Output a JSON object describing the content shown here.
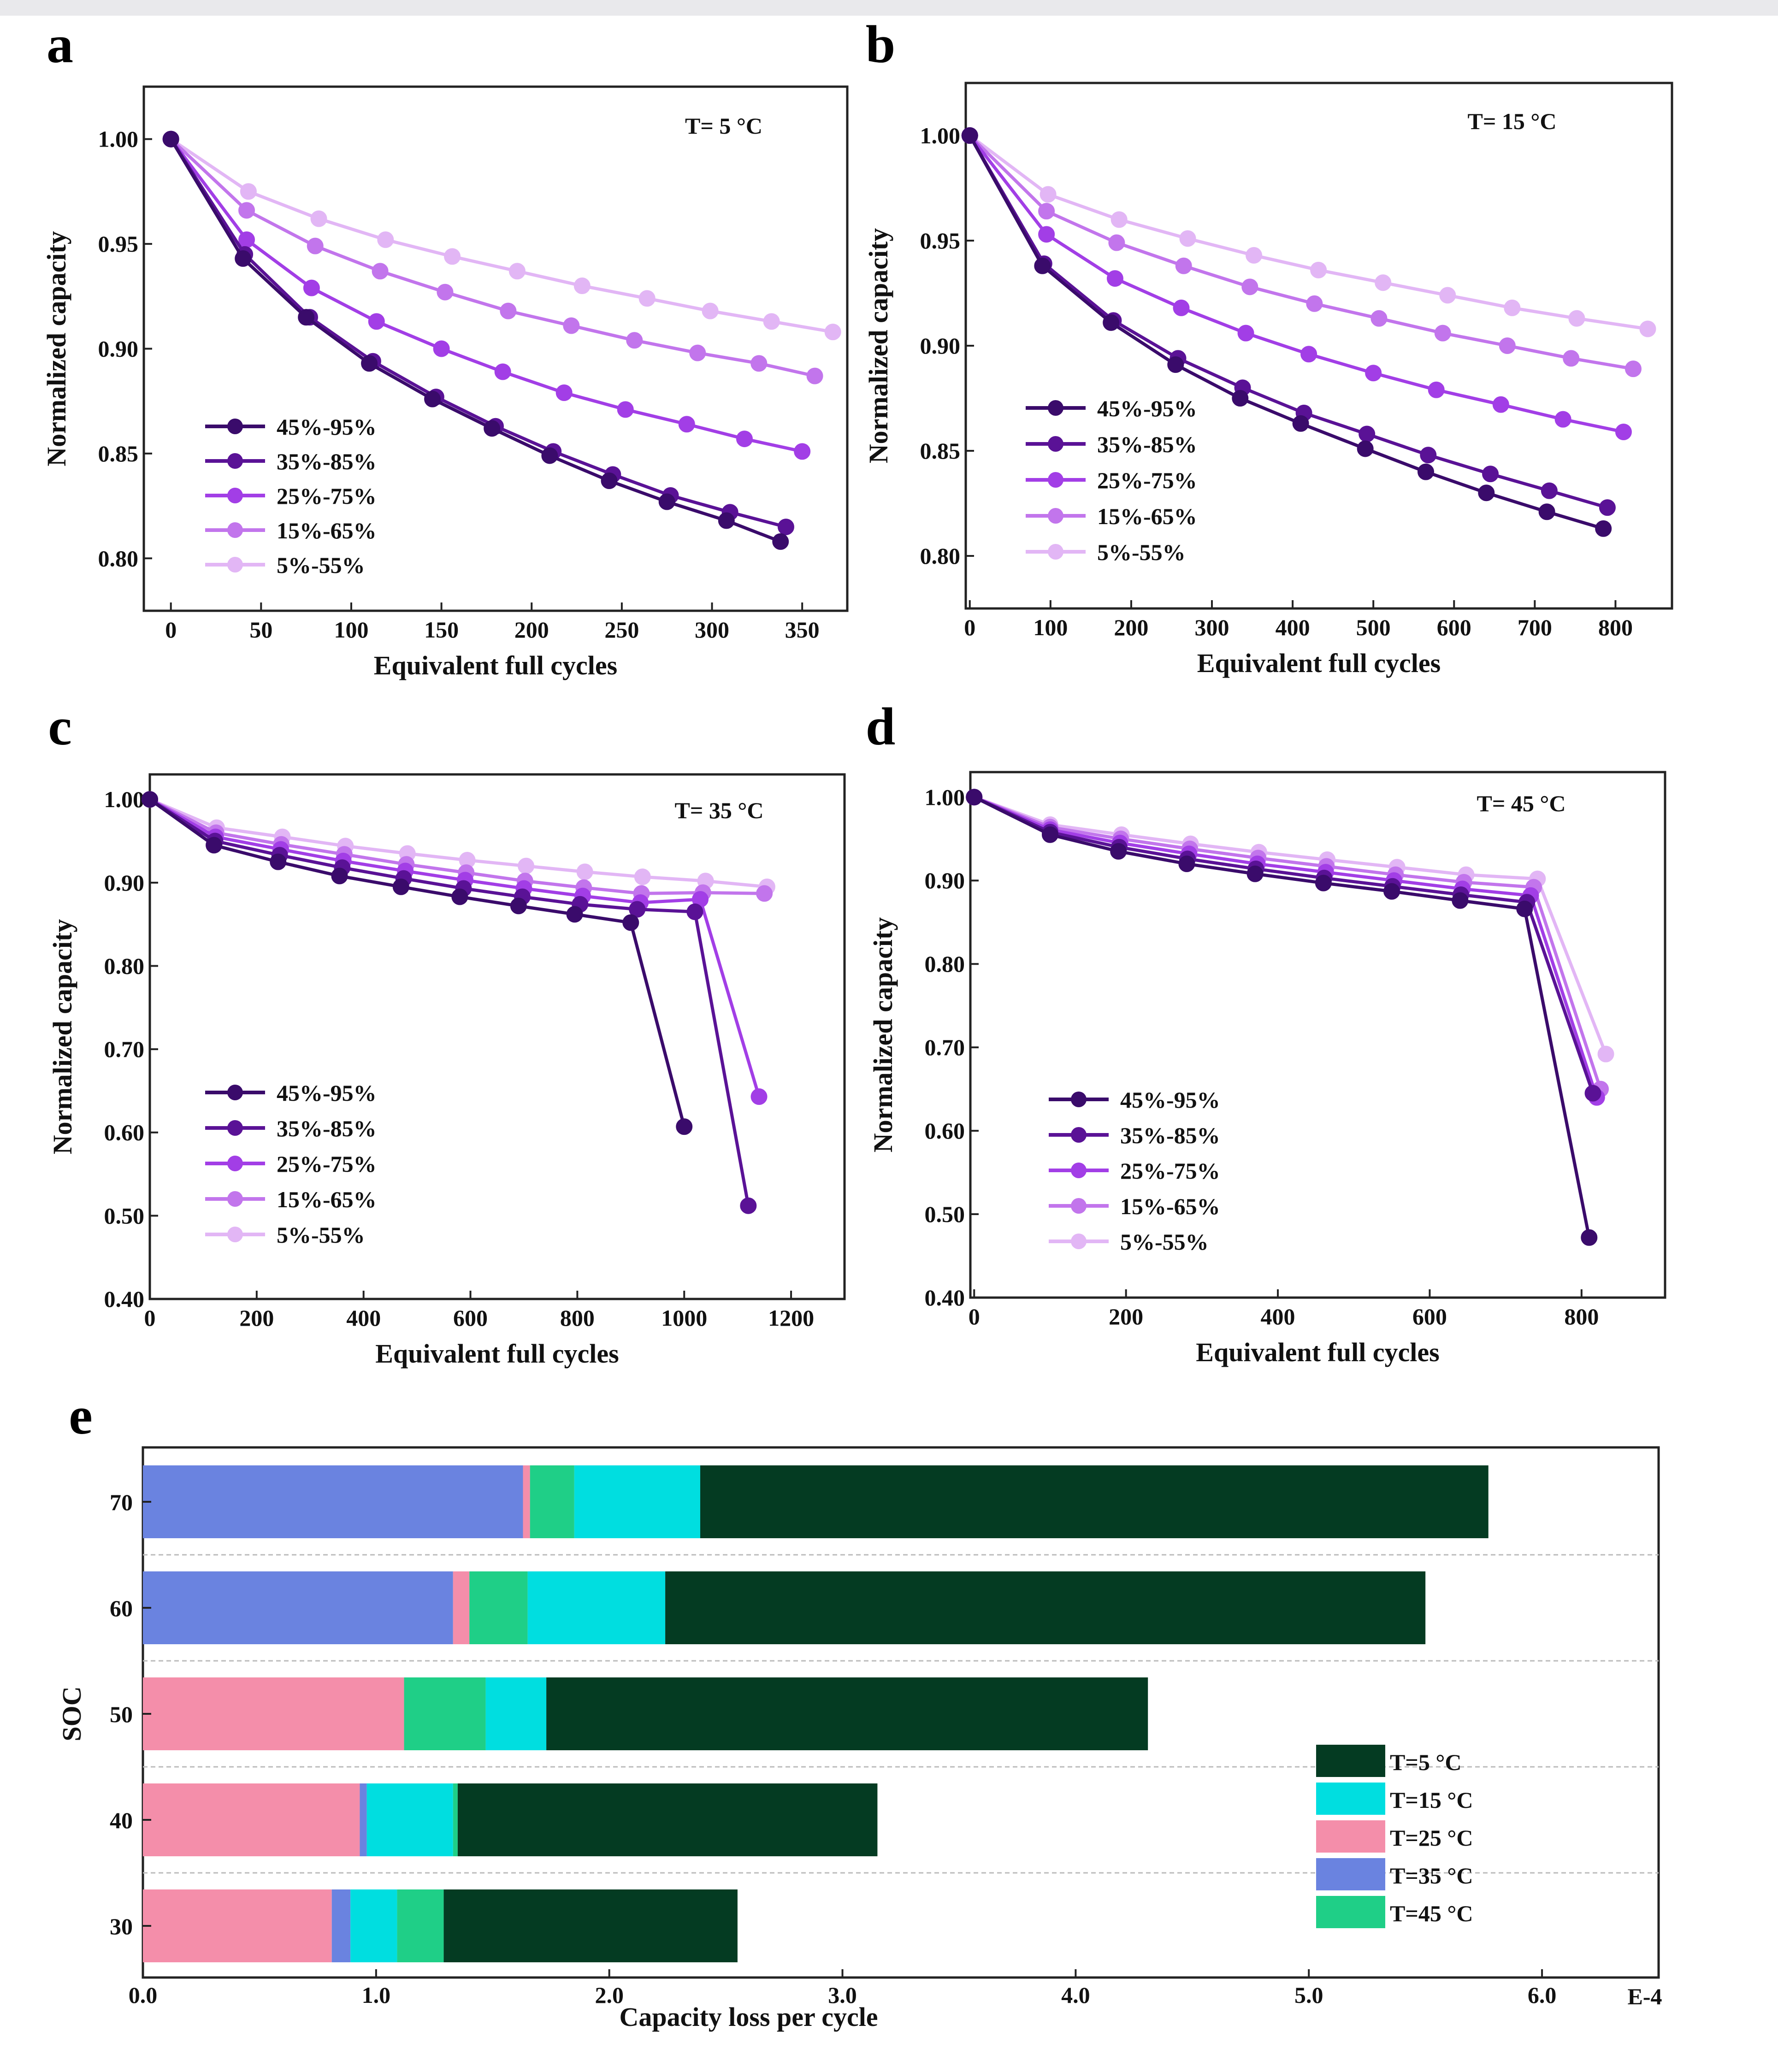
{
  "chart_data": [
    {
      "panel": "a",
      "type": "line",
      "temperature_label": "T= 5 °C",
      "xlabel": "Equivalent full cycles",
      "ylabel": "Normalized capacity",
      "xlim": [
        -15,
        375
      ],
      "ylim": [
        0.775,
        1.025
      ],
      "xticks": [
        0,
        50,
        100,
        150,
        200,
        250,
        300,
        350
      ],
      "yticks": [
        0.8,
        0.85,
        0.9,
        0.95,
        1.0
      ],
      "ytick_labels": [
        "0.80",
        "0.85",
        "0.90",
        "0.95",
        "1.00"
      ],
      "series": [
        {
          "name": "45%-95%",
          "color": "#3a0b6b",
          "x": [
            0,
            40,
            75,
            110,
            145,
            178,
            210,
            243,
            275,
            308,
            338
          ],
          "y": [
            1.0,
            0.943,
            0.915,
            0.893,
            0.876,
            0.862,
            0.849,
            0.837,
            0.827,
            0.818,
            0.808
          ]
        },
        {
          "name": "35%-85%",
          "color": "#5a1296",
          "x": [
            0,
            41,
            77,
            112,
            147,
            180,
            212,
            245,
            277,
            310,
            341
          ],
          "y": [
            1.0,
            0.945,
            0.915,
            0.894,
            0.877,
            0.863,
            0.851,
            0.84,
            0.83,
            0.822,
            0.815
          ]
        },
        {
          "name": "25%-75%",
          "color": "#a23ee6",
          "x": [
            0,
            42,
            78,
            114,
            150,
            184,
            218,
            252,
            286,
            318,
            350
          ],
          "y": [
            1.0,
            0.952,
            0.929,
            0.913,
            0.9,
            0.889,
            0.879,
            0.871,
            0.864,
            0.857,
            0.851
          ]
        },
        {
          "name": "15%-65%",
          "color": "#c275ec",
          "x": [
            0,
            42,
            80,
            116,
            152,
            187,
            222,
            257,
            292,
            326,
            357
          ],
          "y": [
            1.0,
            0.966,
            0.949,
            0.937,
            0.927,
            0.918,
            0.911,
            0.904,
            0.898,
            0.893,
            0.887
          ]
        },
        {
          "name": "5%-55%",
          "color": "#e2b6f5",
          "x": [
            0,
            43,
            82,
            119,
            156,
            192,
            228,
            264,
            299,
            333,
            367
          ],
          "y": [
            1.0,
            0.975,
            0.962,
            0.952,
            0.944,
            0.937,
            0.93,
            0.924,
            0.918,
            0.913,
            0.908
          ]
        }
      ]
    },
    {
      "panel": "b",
      "type": "line",
      "temperature_label": "T= 15 °C",
      "xlabel": "Equivalent full cycles",
      "ylabel": "Normalized capacity",
      "xlim": [
        -5,
        870
      ],
      "ylim": [
        0.775,
        1.025
      ],
      "xticks": [
        0,
        100,
        200,
        300,
        400,
        500,
        600,
        700,
        800
      ],
      "yticks": [
        0.8,
        0.85,
        0.9,
        0.95,
        1.0
      ],
      "ytick_labels": [
        "0.80",
        "0.85",
        "0.90",
        "0.95",
        "1.00"
      ],
      "series": [
        {
          "name": "45%-95%",
          "color": "#3a0b6b",
          "x": [
            0,
            90,
            175,
            255,
            335,
            410,
            490,
            565,
            640,
            715,
            785
          ],
          "y": [
            1.0,
            0.938,
            0.911,
            0.891,
            0.875,
            0.863,
            0.851,
            0.84,
            0.83,
            0.821,
            0.813
          ]
        },
        {
          "name": "35%-85%",
          "color": "#5a1296",
          "x": [
            0,
            92,
            178,
            258,
            338,
            414,
            492,
            568,
            645,
            718,
            790
          ],
          "y": [
            1.0,
            0.939,
            0.912,
            0.894,
            0.88,
            0.868,
            0.858,
            0.848,
            0.839,
            0.831,
            0.823
          ]
        },
        {
          "name": "25%-75%",
          "color": "#a23ee6",
          "x": [
            0,
            95,
            180,
            262,
            342,
            420,
            500,
            578,
            658,
            735,
            810
          ],
          "y": [
            1.0,
            0.953,
            0.932,
            0.918,
            0.906,
            0.896,
            0.887,
            0.879,
            0.872,
            0.865,
            0.859
          ]
        },
        {
          "name": "15%-65%",
          "color": "#c275ec",
          "x": [
            0,
            95,
            182,
            265,
            347,
            427,
            507,
            586,
            666,
            745,
            822
          ],
          "y": [
            1.0,
            0.964,
            0.949,
            0.938,
            0.928,
            0.92,
            0.913,
            0.906,
            0.9,
            0.894,
            0.889
          ]
        },
        {
          "name": "5%-55%",
          "color": "#e2b6f5",
          "x": [
            0,
            97,
            185,
            270,
            352,
            432,
            512,
            592,
            672,
            752,
            840
          ],
          "y": [
            1.0,
            0.972,
            0.96,
            0.951,
            0.943,
            0.936,
            0.93,
            0.924,
            0.918,
            0.913,
            0.908
          ]
        }
      ]
    },
    {
      "panel": "c",
      "type": "line",
      "temperature_label": "T= 35 °C",
      "xlabel": "Equivalent full cycles",
      "ylabel": "Normalized capacity",
      "xlim": [
        0,
        1300
      ],
      "ylim": [
        0.4,
        1.03
      ],
      "xticks": [
        0,
        200,
        400,
        600,
        800,
        1000,
        1200
      ],
      "yticks": [
        0.4,
        0.5,
        0.6,
        0.7,
        0.8,
        0.9,
        1.0
      ],
      "ytick_labels": [
        "0.40",
        "0.50",
        "0.60",
        "0.70",
        "0.80",
        "0.90",
        "1.00"
      ],
      "series": [
        {
          "name": "45%-95%",
          "color": "#3a0b6b",
          "x": [
            0,
            120,
            240,
            355,
            470,
            580,
            690,
            795,
            900,
            1000
          ],
          "y": [
            1.0,
            0.945,
            0.925,
            0.908,
            0.895,
            0.883,
            0.872,
            0.862,
            0.852,
            0.607
          ]
        },
        {
          "name": "35%-85%",
          "color": "#5a1296",
          "x": [
            0,
            122,
            243,
            360,
            475,
            587,
            697,
            805,
            912,
            1020,
            1120
          ],
          "y": [
            1.0,
            0.95,
            0.933,
            0.918,
            0.905,
            0.893,
            0.883,
            0.874,
            0.868,
            0.865,
            0.512
          ]
        },
        {
          "name": "25%-75%",
          "color": "#a23ee6",
          "x": [
            0,
            123,
            245,
            362,
            478,
            590,
            700,
            810,
            918,
            1030,
            1140
          ],
          "y": [
            1.0,
            0.955,
            0.94,
            0.926,
            0.914,
            0.903,
            0.893,
            0.884,
            0.876,
            0.88,
            0.643
          ]
        },
        {
          "name": "15%-65%",
          "color": "#c275ec",
          "x": [
            0,
            124,
            246,
            364,
            480,
            592,
            702,
            812,
            920,
            1035,
            1150
          ],
          "y": [
            1.0,
            0.96,
            0.946,
            0.934,
            0.922,
            0.912,
            0.902,
            0.894,
            0.887,
            0.888,
            0.887
          ]
        },
        {
          "name": "5%-55%",
          "color": "#e2b6f5",
          "x": [
            0,
            125,
            248,
            366,
            482,
            594,
            704,
            814,
            922,
            1040,
            1155
          ],
          "y": [
            1.0,
            0.966,
            0.955,
            0.944,
            0.935,
            0.927,
            0.92,
            0.913,
            0.907,
            0.902,
            0.895
          ]
        }
      ]
    },
    {
      "panel": "d",
      "type": "line",
      "temperature_label": "T= 45 °C",
      "xlabel": "Equivalent full cycles",
      "ylabel": "Normalized capacity",
      "xlim": [
        -5,
        910
      ],
      "ylim": [
        0.4,
        1.03
      ],
      "xticks": [
        0,
        200,
        400,
        600,
        800
      ],
      "yticks": [
        0.4,
        0.5,
        0.6,
        0.7,
        0.8,
        0.9,
        1.0
      ],
      "ytick_labels": [
        "0.40",
        "0.50",
        "0.60",
        "0.70",
        "0.80",
        "0.90",
        "1.00"
      ],
      "series": [
        {
          "name": "45%-95%",
          "color": "#3a0b6b",
          "x": [
            0,
            100,
            190,
            280,
            370,
            460,
            550,
            640,
            725,
            810
          ],
          "y": [
            1.0,
            0.955,
            0.935,
            0.92,
            0.908,
            0.897,
            0.887,
            0.876,
            0.866,
            0.472
          ]
        },
        {
          "name": "35%-85%",
          "color": "#5a1296",
          "x": [
            0,
            100,
            191,
            281,
            371,
            461,
            551,
            641,
            728,
            815
          ],
          "y": [
            1.0,
            0.958,
            0.94,
            0.926,
            0.914,
            0.903,
            0.893,
            0.883,
            0.874,
            0.645
          ]
        },
        {
          "name": "25%-75%",
          "color": "#a23ee6",
          "x": [
            0,
            100,
            192,
            283,
            373,
            463,
            553,
            643,
            733,
            820
          ],
          "y": [
            1.0,
            0.961,
            0.945,
            0.932,
            0.92,
            0.91,
            0.9,
            0.89,
            0.882,
            0.64
          ]
        },
        {
          "name": "15%-65%",
          "color": "#c275ec",
          "x": [
            0,
            100,
            193,
            284,
            374,
            464,
            555,
            645,
            737,
            825
          ],
          "y": [
            1.0,
            0.964,
            0.95,
            0.938,
            0.927,
            0.917,
            0.907,
            0.898,
            0.892,
            0.65
          ]
        },
        {
          "name": "5%-55%",
          "color": "#e2b6f5",
          "x": [
            0,
            100,
            194,
            285,
            375,
            465,
            557,
            648,
            742,
            832
          ],
          "y": [
            1.0,
            0.967,
            0.955,
            0.944,
            0.934,
            0.925,
            0.916,
            0.907,
            0.902,
            0.692
          ]
        }
      ]
    },
    {
      "panel": "e",
      "type": "bar",
      "orientation": "horizontal",
      "stacked": true,
      "xlabel": "Capacity loss per cycle",
      "ylabel": "SOC",
      "x_multiplier_label": "E-4",
      "xlim": [
        0,
        6.5
      ],
      "xticks": [
        0.0,
        1.0,
        2.0,
        3.0,
        4.0,
        5.0,
        6.0
      ],
      "xtick_labels": [
        "0.0",
        "1.0",
        "2.0",
        "3.0",
        "4.0",
        "5.0",
        "6.0"
      ],
      "categories": [
        "70",
        "60",
        "50",
        "40",
        "30"
      ],
      "series_drawing_order": [
        "T=35 °C",
        "T=25 °C",
        "T=45 °C",
        "T=15 °C",
        "T=5 °C"
      ],
      "legend_order": [
        "T=5 °C",
        "T=15 °C",
        "T=25 °C",
        "T=35 °C",
        "T=45 °C"
      ],
      "colors": {
        "T=5 °C": "#043b22",
        "T=15 °C": "#00dee0",
        "T=25 °C": "#f48eaa",
        "T=35 °C": "#6a83e0",
        "T=45 °C": "#1fcf87"
      },
      "segments": {
        "70": [
          [
            "T=35 °C",
            0.0,
            1.63
          ],
          [
            "T=25 °C",
            1.63,
            1.66
          ],
          [
            "T=45 °C",
            1.66,
            1.85
          ],
          [
            "T=15 °C",
            1.85,
            2.39
          ],
          [
            "T=5 °C",
            2.39,
            5.77
          ]
        ],
        "60": [
          [
            "T=35 °C",
            0.0,
            1.33
          ],
          [
            "T=25 °C",
            1.33,
            1.4
          ],
          [
            "T=45 °C",
            1.4,
            1.65
          ],
          [
            "T=15 °C",
            1.65,
            2.24
          ],
          [
            "T=5 °C",
            2.24,
            5.5
          ]
        ],
        "50": [
          [
            "T=25 °C",
            0.0,
            1.12
          ],
          [
            "T=45 °C",
            1.12,
            1.47
          ],
          [
            "T=15 °C",
            1.47,
            1.73
          ],
          [
            "T=5 °C",
            1.73,
            4.31
          ]
        ],
        "40": [
          [
            "T=25 °C",
            0.0,
            0.93
          ],
          [
            "T=35 °C",
            0.93,
            0.96
          ],
          [
            "T=15 °C",
            0.96,
            1.33
          ],
          [
            "T=45 °C",
            1.33,
            1.35
          ],
          [
            "T=5 °C",
            1.35,
            3.15
          ]
        ],
        "30": [
          [
            "T=25 °C",
            0.0,
            0.81
          ],
          [
            "T=35 °C",
            0.81,
            0.89
          ],
          [
            "T=15 °C",
            0.89,
            1.09
          ],
          [
            "T=45 °C",
            1.09,
            1.29
          ],
          [
            "T=5 °C",
            1.29,
            2.55
          ]
        ]
      }
    }
  ]
}
